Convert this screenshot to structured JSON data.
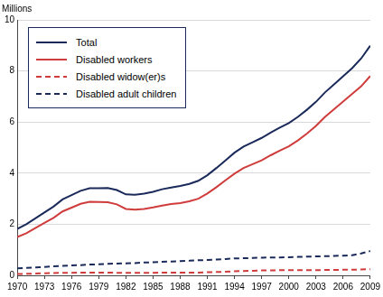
{
  "chart_data": {
    "type": "line",
    "y_label": "Millions",
    "x": [
      1970,
      1971,
      1972,
      1973,
      1974,
      1975,
      1976,
      1977,
      1978,
      1979,
      1980,
      1981,
      1982,
      1983,
      1984,
      1985,
      1986,
      1987,
      1988,
      1989,
      1990,
      1991,
      1992,
      1993,
      1994,
      1995,
      1996,
      1997,
      1998,
      1999,
      2000,
      2001,
      2002,
      2003,
      2004,
      2005,
      2006,
      2007,
      2008,
      2009
    ],
    "xlim": [
      1970,
      2009
    ],
    "xticks": [
      1970,
      1973,
      1976,
      1979,
      1982,
      1985,
      1988,
      1991,
      1994,
      1997,
      2000,
      2003,
      2006,
      2009
    ],
    "ylim": [
      0,
      10
    ],
    "yticks": [
      0,
      2,
      4,
      6,
      8,
      10
    ],
    "grid": true,
    "legend": "upper left",
    "series": [
      {
        "name": "Total",
        "color": "#1a2a5a",
        "line_style": "solid",
        "values": [
          1.82,
          2.0,
          2.23,
          2.46,
          2.69,
          2.97,
          3.14,
          3.31,
          3.41,
          3.41,
          3.42,
          3.34,
          3.17,
          3.15,
          3.2,
          3.27,
          3.37,
          3.44,
          3.5,
          3.58,
          3.7,
          3.92,
          4.2,
          4.5,
          4.8,
          5.04,
          5.21,
          5.38,
          5.59,
          5.78,
          5.96,
          6.2,
          6.48,
          6.79,
          7.16,
          7.47,
          7.79,
          8.11,
          8.49,
          8.99
        ]
      },
      {
        "name": "Disabled workers",
        "color": "#d03c3c",
        "line_style": "solid",
        "values": [
          1.5,
          1.65,
          1.85,
          2.05,
          2.25,
          2.5,
          2.65,
          2.8,
          2.88,
          2.87,
          2.86,
          2.78,
          2.6,
          2.57,
          2.6,
          2.66,
          2.73,
          2.79,
          2.83,
          2.9,
          3.0,
          3.2,
          3.45,
          3.72,
          3.98,
          4.2,
          4.35,
          4.5,
          4.7,
          4.88,
          5.05,
          5.28,
          5.55,
          5.85,
          6.2,
          6.5,
          6.8,
          7.1,
          7.4,
          7.8
        ]
      },
      {
        "name": "Disabled widow(er)s",
        "color": "#d03c3c",
        "line_style": "dashed",
        "values": [
          0.05,
          0.06,
          0.07,
          0.08,
          0.09,
          0.1,
          0.1,
          0.11,
          0.11,
          0.11,
          0.11,
          0.1,
          0.1,
          0.1,
          0.1,
          0.1,
          0.11,
          0.11,
          0.11,
          0.11,
          0.11,
          0.12,
          0.13,
          0.14,
          0.16,
          0.17,
          0.18,
          0.19,
          0.19,
          0.2,
          0.2,
          0.2,
          0.2,
          0.2,
          0.21,
          0.21,
          0.22,
          0.22,
          0.23,
          0.24
        ]
      },
      {
        "name": "Disabled adult children",
        "color": "#1a2a5a",
        "line_style": "dashed",
        "values": [
          0.27,
          0.29,
          0.31,
          0.33,
          0.35,
          0.37,
          0.39,
          0.4,
          0.42,
          0.43,
          0.45,
          0.46,
          0.47,
          0.48,
          0.5,
          0.51,
          0.53,
          0.54,
          0.56,
          0.57,
          0.59,
          0.6,
          0.62,
          0.64,
          0.66,
          0.67,
          0.68,
          0.69,
          0.7,
          0.7,
          0.71,
          0.72,
          0.73,
          0.74,
          0.75,
          0.76,
          0.77,
          0.79,
          0.86,
          0.95
        ]
      }
    ]
  }
}
